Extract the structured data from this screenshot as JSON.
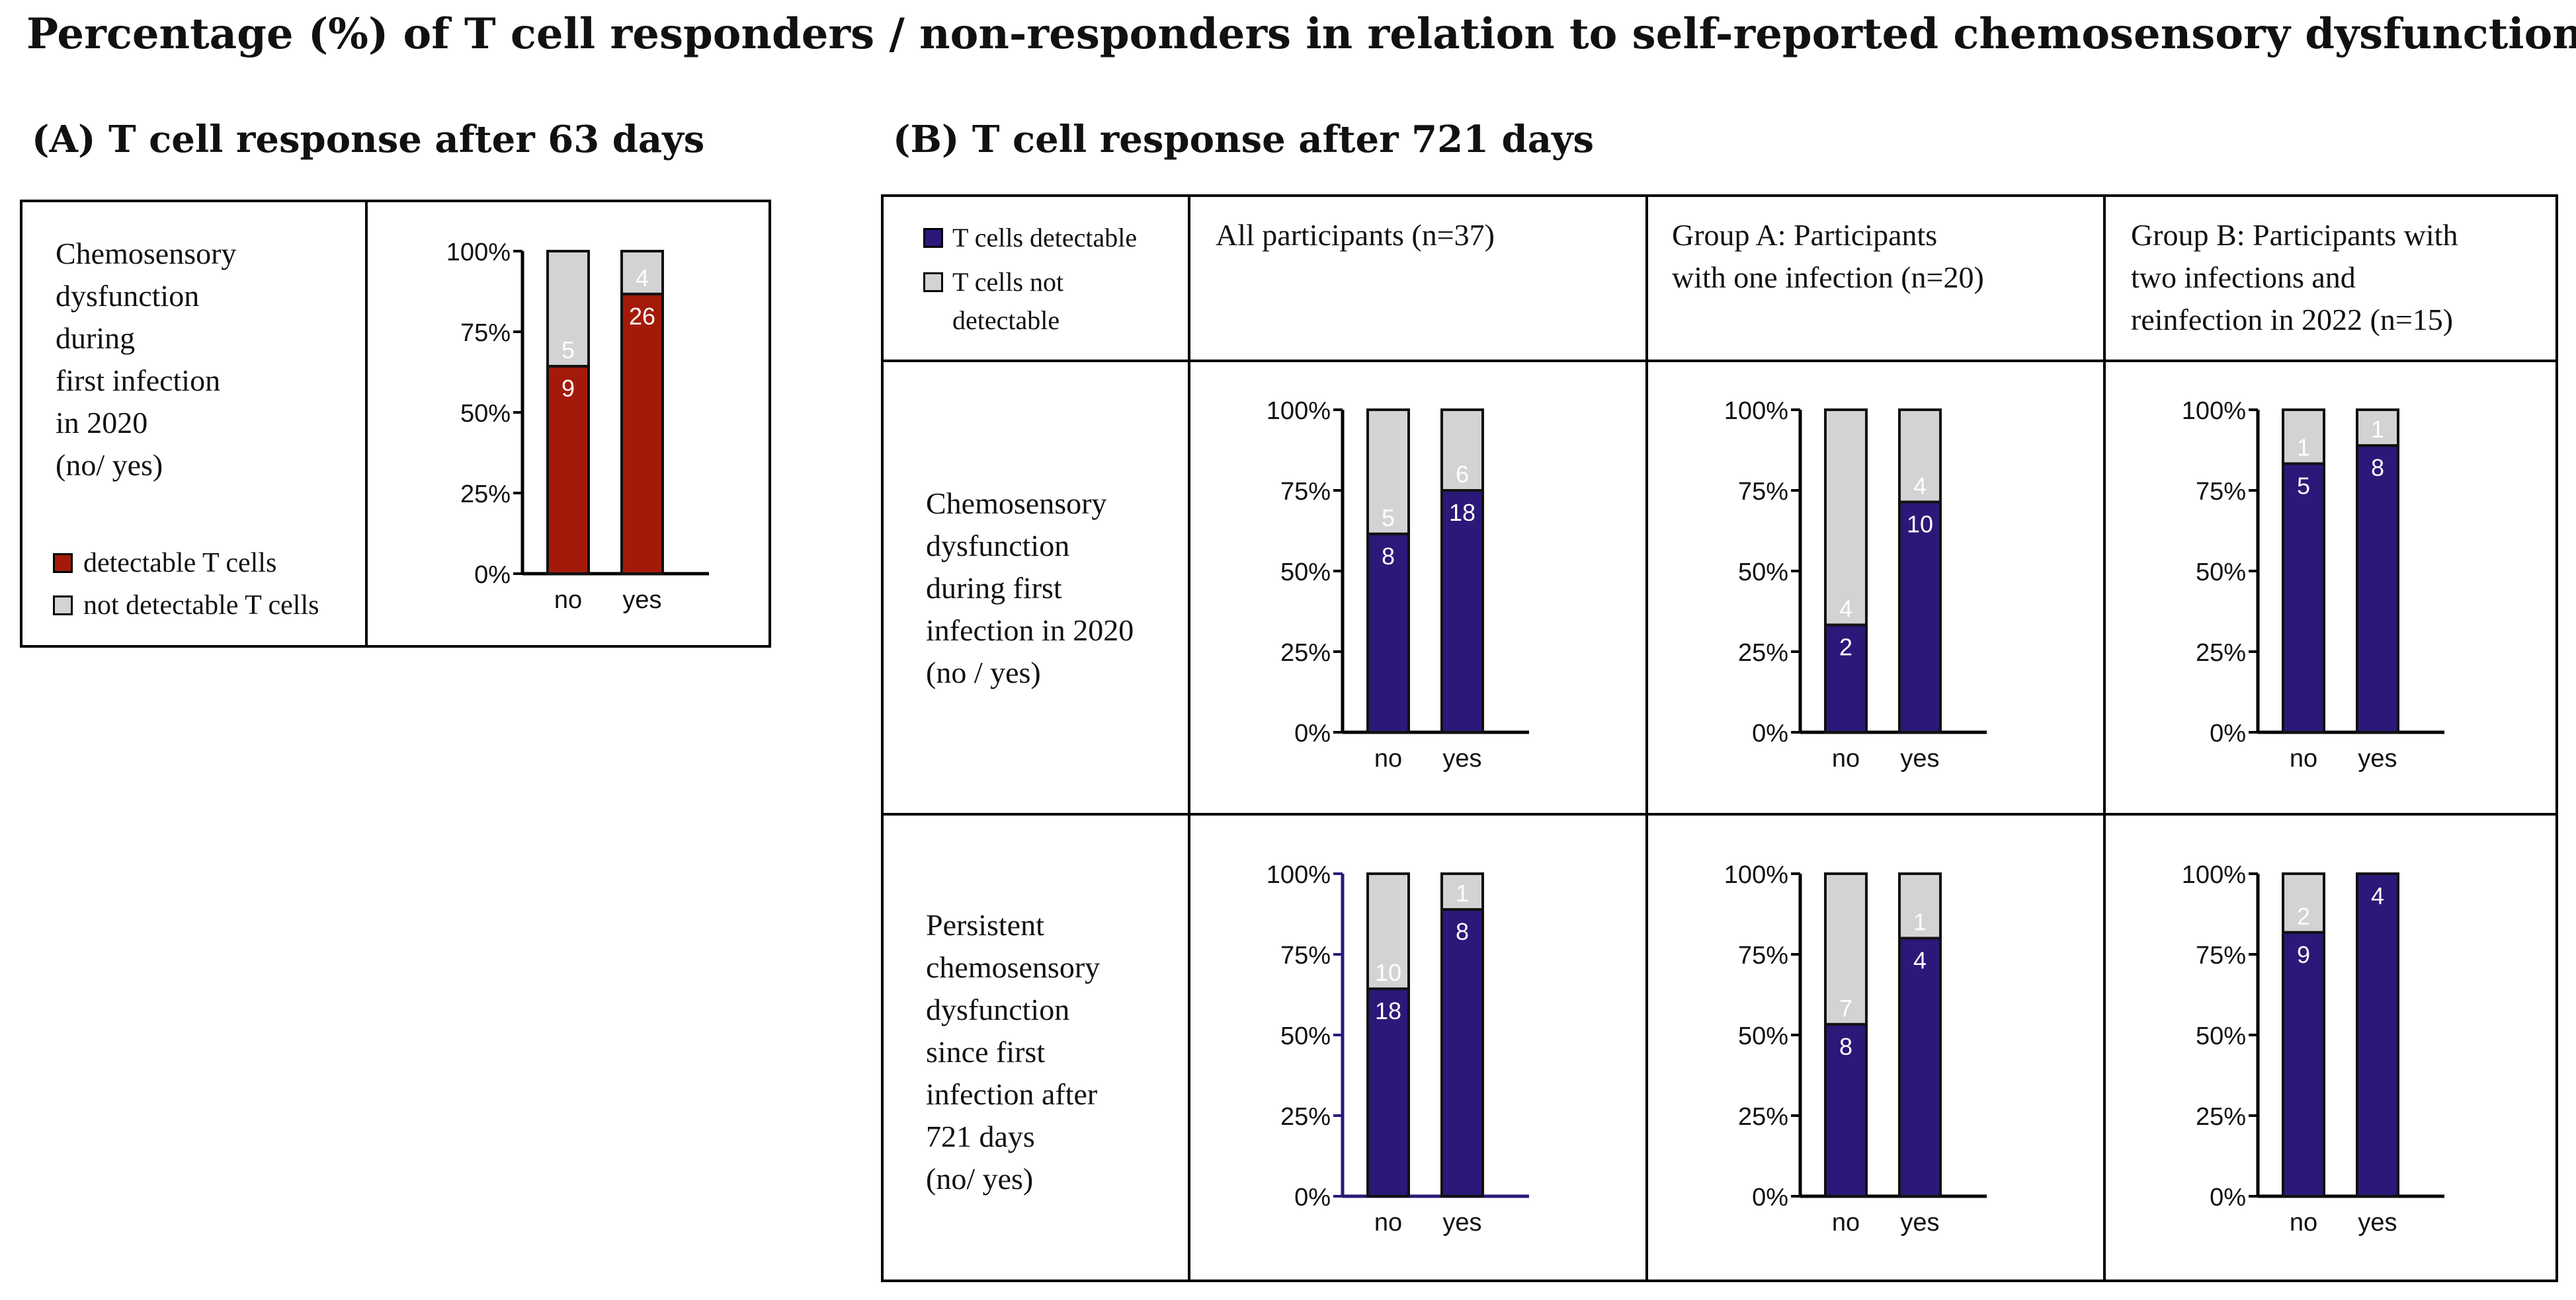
{
  "title": "Percentage (%) of T cell responders / non-responders in relation to self-reported chemosensory dysfunction",
  "colors": {
    "panel_a_fill": "#a41a0a",
    "panel_b_fill": "#2b1878",
    "grey": "#d3d3d3",
    "axis_b_row2": "#2b1878"
  },
  "panel_a": {
    "heading": "(A)  T cell response after 63 days",
    "row_label_lines": [
      "Chemosensory",
      "dysfunction",
      "during",
      "first infection",
      "in 2020",
      "(no/ yes)"
    ],
    "legend": [
      {
        "label": "detectable T cells",
        "color": "#a41a0a"
      },
      {
        "label": "not detectable T cells",
        "color": "#d3d3d3"
      }
    ]
  },
  "panel_b": {
    "heading": "(B)  T cell response after 721 days",
    "legend": [
      {
        "label": "T cells detectable",
        "color": "#2b1878"
      },
      {
        "label_lines": [
          "T cells not",
          "detectable"
        ],
        "color": "#d3d3d3"
      }
    ],
    "col_headers": [
      {
        "lines": [
          "All participants (n=37)"
        ]
      },
      {
        "lines": [
          "Group A: Participants",
          "with one infection (n=20)"
        ]
      },
      {
        "lines": [
          "Group B: Participants with",
          "two infections and",
          "reinfection in 2022 (n=15)"
        ]
      }
    ],
    "row_labels": [
      {
        "lines": [
          "Chemosensory",
          "dysfunction",
          "during first",
          "infection in 2020",
          "(no / yes)"
        ]
      },
      {
        "lines": [
          "Persistent",
          "chemosensory",
          "dysfunction",
          "since first",
          "infection after",
          "721 days",
          "(no/ yes)"
        ]
      }
    ]
  },
  "chart_data": [
    {
      "id": "A",
      "type": "bar",
      "stacked": true,
      "title": "T cell response after 63 days",
      "categories": [
        "no",
        "yes"
      ],
      "yticks": [
        "0%",
        "25%",
        "50%",
        "75%",
        "100%"
      ],
      "ylim": [
        0,
        100
      ],
      "series": [
        {
          "name": "detectable T cells",
          "counts": [
            9,
            26
          ],
          "values": [
            64.3,
            86.7
          ]
        },
        {
          "name": "not detectable T cells",
          "counts": [
            5,
            4
          ],
          "values": [
            35.7,
            13.3
          ]
        }
      ]
    },
    {
      "id": "B-r1-c1",
      "type": "bar",
      "stacked": true,
      "title": "All participants (n=37) – Chemosensory dysfunction during first infection in 2020",
      "categories": [
        "no",
        "yes"
      ],
      "yticks": [
        "0%",
        "25%",
        "50%",
        "75%",
        "100%"
      ],
      "ylim": [
        0,
        100
      ],
      "series": [
        {
          "name": "T cells detectable",
          "counts": [
            8,
            18
          ],
          "values": [
            61.5,
            75.0
          ]
        },
        {
          "name": "T cells not detectable",
          "counts": [
            5,
            6
          ],
          "values": [
            38.5,
            25.0
          ]
        }
      ]
    },
    {
      "id": "B-r1-c2",
      "type": "bar",
      "stacked": true,
      "title": "Group A: Participants with one infection (n=20) – Chemosensory dysfunction during first infection in 2020",
      "categories": [
        "no",
        "yes"
      ],
      "yticks": [
        "0%",
        "25%",
        "50%",
        "75%",
        "100%"
      ],
      "ylim": [
        0,
        100
      ],
      "series": [
        {
          "name": "T cells detectable",
          "counts": [
            2,
            10
          ],
          "values": [
            33.3,
            71.4
          ]
        },
        {
          "name": "T cells not detectable",
          "counts": [
            4,
            4
          ],
          "values": [
            66.7,
            28.6
          ]
        }
      ]
    },
    {
      "id": "B-r1-c3",
      "type": "bar",
      "stacked": true,
      "title": "Group B: Participants with two infections and reinfection in 2022 (n=15) – Chemosensory dysfunction during first infection in 2020",
      "categories": [
        "no",
        "yes"
      ],
      "yticks": [
        "0%",
        "25%",
        "50%",
        "75%",
        "100%"
      ],
      "ylim": [
        0,
        100
      ],
      "series": [
        {
          "name": "T cells detectable",
          "counts": [
            5,
            8
          ],
          "values": [
            83.3,
            88.9
          ]
        },
        {
          "name": "T cells not detectable",
          "counts": [
            1,
            1
          ],
          "values": [
            16.7,
            11.1
          ]
        }
      ]
    },
    {
      "id": "B-r2-c1",
      "type": "bar",
      "stacked": true,
      "title": "All participants (n=37) – Persistent chemosensory dysfunction since first infection after 721 days",
      "categories": [
        "no",
        "yes"
      ],
      "yticks": [
        "0%",
        "25%",
        "50%",
        "75%",
        "100%"
      ],
      "ylim": [
        0,
        100
      ],
      "series": [
        {
          "name": "T cells detectable",
          "counts": [
            18,
            8
          ],
          "values": [
            64.3,
            88.9
          ]
        },
        {
          "name": "T cells not detectable",
          "counts": [
            10,
            1
          ],
          "values": [
            35.7,
            11.1
          ]
        }
      ]
    },
    {
      "id": "B-r2-c2",
      "type": "bar",
      "stacked": true,
      "title": "Group A: Participants with one infection (n=20) – Persistent chemosensory dysfunction since first infection after 721 days",
      "categories": [
        "no",
        "yes"
      ],
      "yticks": [
        "0%",
        "25%",
        "50%",
        "75%",
        "100%"
      ],
      "ylim": [
        0,
        100
      ],
      "series": [
        {
          "name": "T cells detectable",
          "counts": [
            8,
            4
          ],
          "values": [
            53.3,
            80.0
          ]
        },
        {
          "name": "T cells not detectable",
          "counts": [
            7,
            1
          ],
          "values": [
            46.7,
            20.0
          ]
        }
      ]
    },
    {
      "id": "B-r2-c3",
      "type": "bar",
      "stacked": true,
      "title": "Group B: Participants with two infections and reinfection in 2022 (n=15) – Persistent chemosensory dysfunction since first infection after 721 days",
      "categories": [
        "no",
        "yes"
      ],
      "yticks": [
        "0%",
        "25%",
        "50%",
        "75%",
        "100%"
      ],
      "ylim": [
        0,
        100
      ],
      "series": [
        {
          "name": "T cells detectable",
          "counts": [
            9,
            4
          ],
          "values": [
            81.8,
            100.0
          ]
        },
        {
          "name": "T cells not detectable",
          "counts": [
            2,
            0
          ],
          "values": [
            18.2,
            0.0
          ]
        }
      ]
    }
  ]
}
